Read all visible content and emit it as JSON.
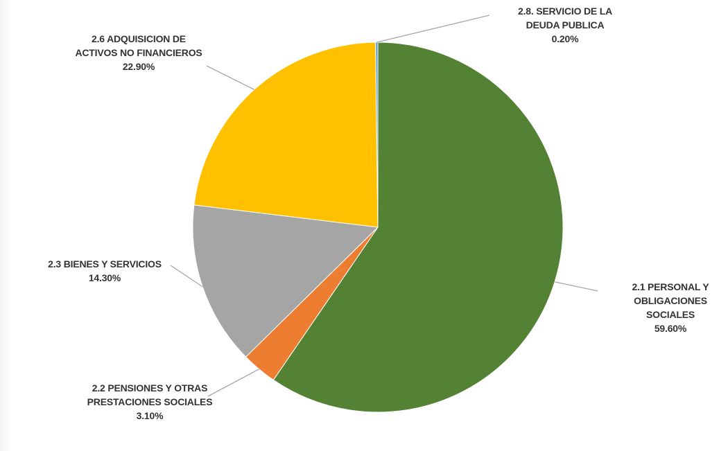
{
  "chart_data": {
    "type": "pie",
    "slices": [
      {
        "name": "2.1 PERSONAL Y OBLIGACIONES SOCIALES",
        "label_lines": [
          "2.1 PERSONAL Y",
          "OBLIGACIONES",
          "SOCIALES"
        ],
        "value_text": "59.60%",
        "value": 59.6,
        "color": "#548235"
      },
      {
        "name": "2.2 PENSIONES Y OTRAS PRESTACIONES SOCIALES",
        "label_lines": [
          "2.2 PENSIONES Y OTRAS",
          "PRESTACIONES SOCIALES"
        ],
        "value_text": "3.10%",
        "value": 3.1,
        "color": "#ED7D31"
      },
      {
        "name": "2.3 BIENES Y SERVICIOS",
        "label_lines": [
          "2.3 BIENES Y SERVICIOS"
        ],
        "value_text": "14.30%",
        "value": 14.3,
        "color": "#A5A5A5"
      },
      {
        "name": "2.6 ADQUISICION DE ACTIVOS NO FINANCIEROS",
        "label_lines": [
          "2.6 ADQUISICION DE",
          "ACTIVOS NO FINANCIEROS"
        ],
        "value_text": "22.90%",
        "value": 22.9,
        "color": "#FFC000"
      },
      {
        "name": "2.8. SERVICIO DE LA DEUDA PUBLICA",
        "label_lines": [
          "2.8. SERVICIO DE LA",
          "DEUDA PUBLICA"
        ],
        "value_text": "0.20%",
        "value": 0.2,
        "color": "#5B9BD5"
      }
    ],
    "legend": "none",
    "data_labels": "outside with leader lines"
  }
}
